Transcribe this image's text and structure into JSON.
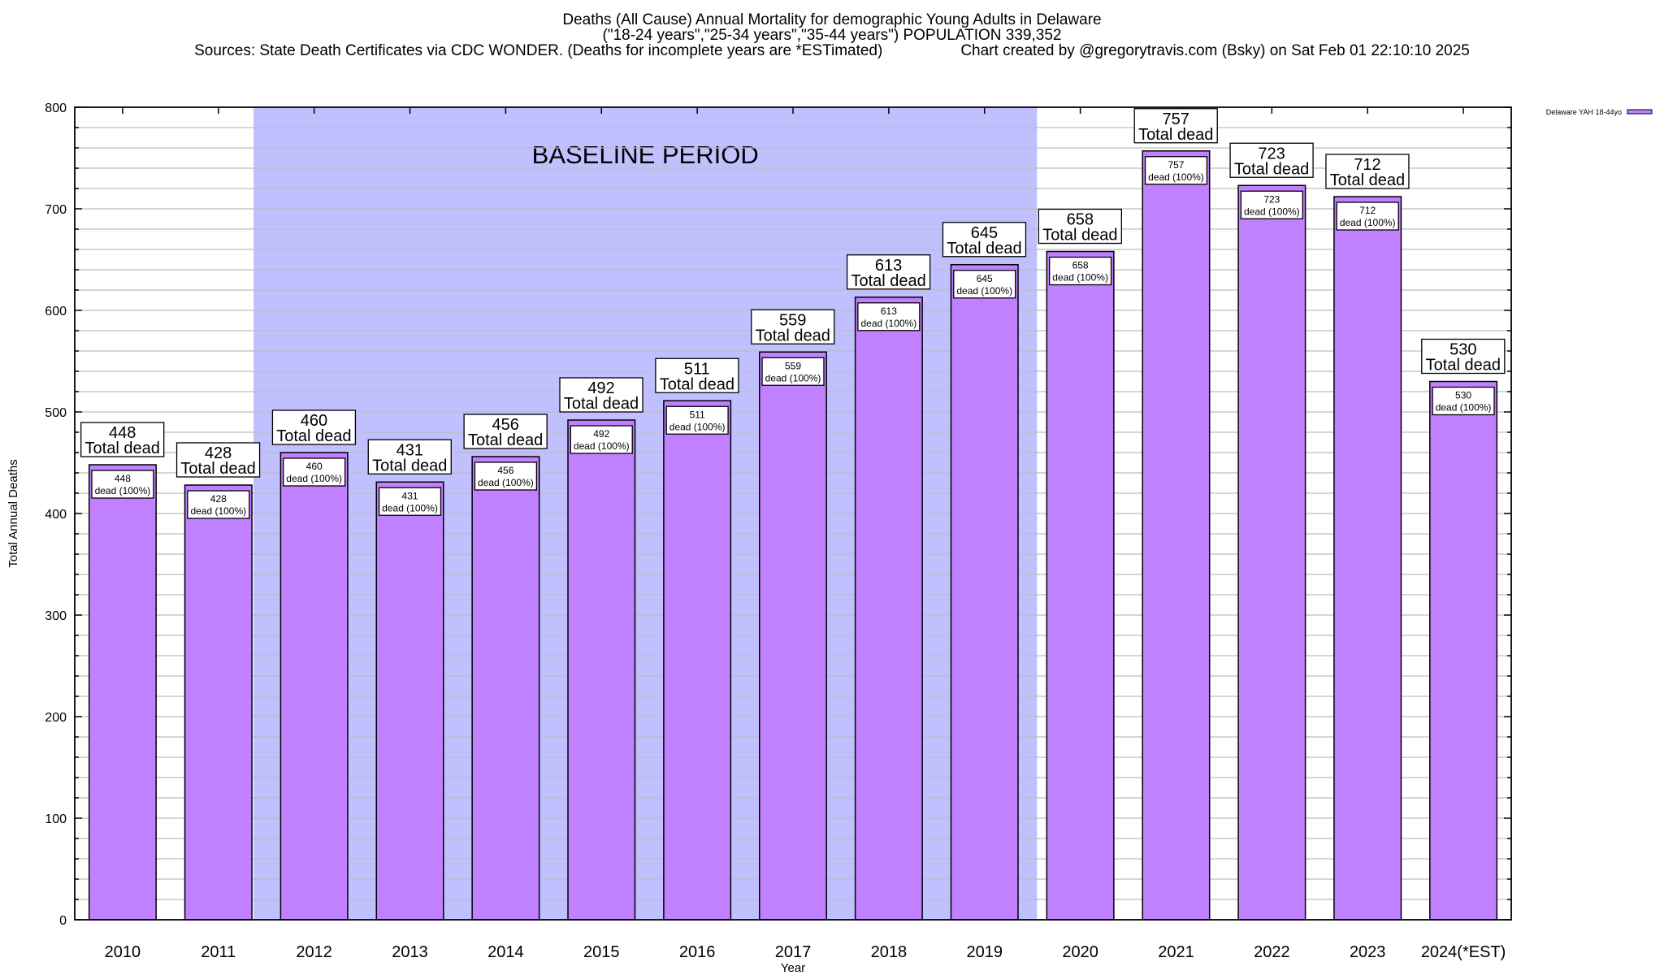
{
  "chart_data": {
    "type": "bar",
    "title": "Deaths (All Cause) Annual Mortality for demographic Young Adults in Delaware",
    "subtitle": "(\"18-24 years\",\"25-34 years\",\"35-44 years\") POPULATION 339,352",
    "sources_text": "Sources: State Death Certificates via CDC WONDER. (Deaths for incomplete years are *ESTimated)",
    "credit_text": "Chart created by @gregorytravis.com (Bsky) on Sat Feb 01 22:10:10 2025",
    "xlabel": "Year",
    "ylabel": "Total Annual Deaths",
    "ylim": [
      0,
      800
    ],
    "yticks": [
      0,
      100,
      200,
      300,
      400,
      500,
      600,
      700,
      800
    ],
    "minor_tick_step": 20,
    "grid": true,
    "categories": [
      "2010",
      "2011",
      "2012",
      "2013",
      "2014",
      "2015",
      "2016",
      "2017",
      "2018",
      "2019",
      "2020",
      "2021",
      "2022",
      "2023",
      "2024(*EST)"
    ],
    "series": [
      {
        "name": "Delaware YAH 18-44yo",
        "color": "#c080ff",
        "values": [
          448,
          428,
          460,
          431,
          456,
          492,
          511,
          559,
          613,
          645,
          658,
          757,
          723,
          712,
          530
        ]
      }
    ],
    "total_label_suffix": "Total dead",
    "inner_label_suffix": "dead (100%)",
    "annotation": {
      "text": "BASELINE PERIOD",
      "start_category": "2012",
      "end_category": "2019",
      "color": "#c0c0ff"
    },
    "legend": {
      "position": "top-right",
      "entries": [
        "Delaware YAH 18-44yo"
      ]
    }
  }
}
